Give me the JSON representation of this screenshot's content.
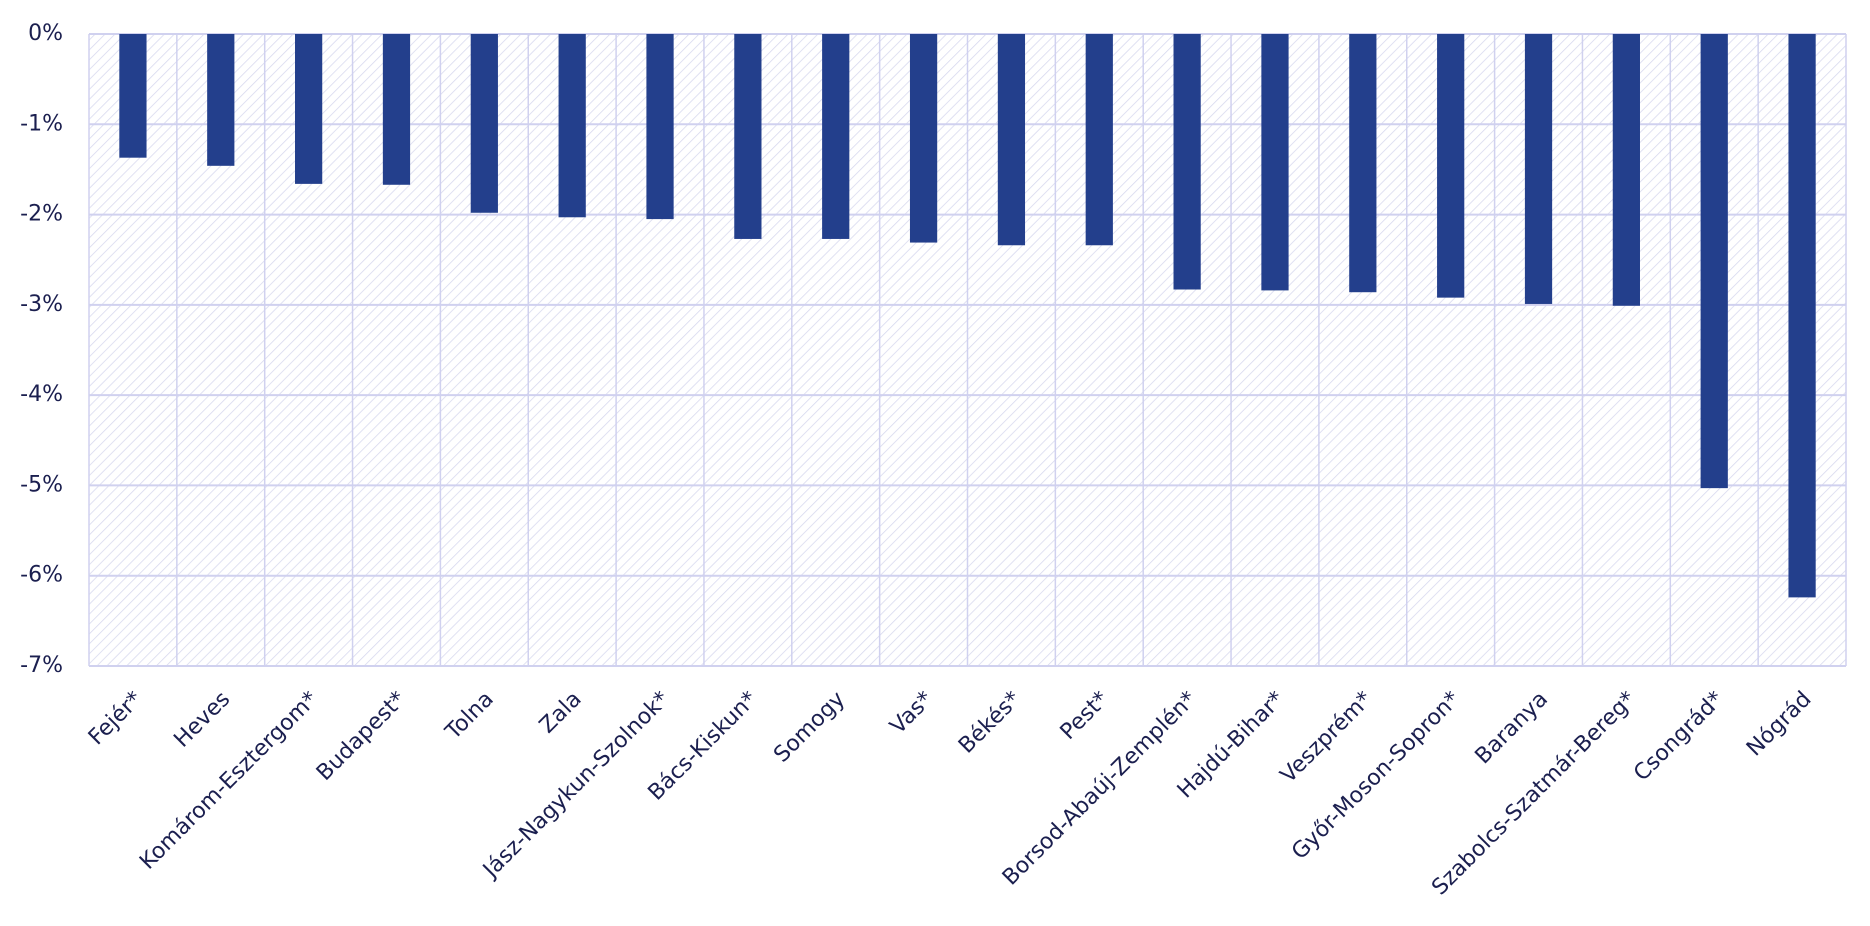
{
  "chart_data": {
    "type": "bar",
    "categories": [
      "Fejér*",
      "Heves",
      "Komárom-Esztergom*",
      "Budapest*",
      "Tolna",
      "Zala",
      "Jász-Nagykun-Szolnok*",
      "Bács-Kiskun*",
      "Somogy",
      "Vas*",
      "Békés*",
      "Pest*",
      "Borsod-Abaúj-Zemplén*",
      "Hajdú-Bihar*",
      "Veszprém*",
      "Győr-Moson-Sopron*",
      "Baranya",
      "Szabolcs-Szatmár-Bereg*",
      "Csongrád*",
      "Nógrád"
    ],
    "values": [
      -1.37,
      -1.46,
      -1.66,
      -1.67,
      -1.98,
      -2.03,
      -2.05,
      -2.27,
      -2.27,
      -2.31,
      -2.34,
      -2.34,
      -2.83,
      -2.84,
      -2.86,
      -2.92,
      -2.99,
      -3.01,
      -5.03,
      -6.24
    ],
    "color": "#233f8c",
    "ylim": [
      -7,
      0
    ],
    "yticks": [
      {
        "value": 0,
        "label": "0%"
      },
      {
        "value": -1,
        "label": "-1%"
      },
      {
        "value": -2,
        "label": "-2%"
      },
      {
        "value": -3,
        "label": "-3%"
      },
      {
        "value": -4,
        "label": "-4%"
      },
      {
        "value": -5,
        "label": "-5%"
      },
      {
        "value": -6,
        "label": "-6%"
      },
      {
        "value": -7,
        "label": "-7%"
      }
    ],
    "grid": true
  }
}
